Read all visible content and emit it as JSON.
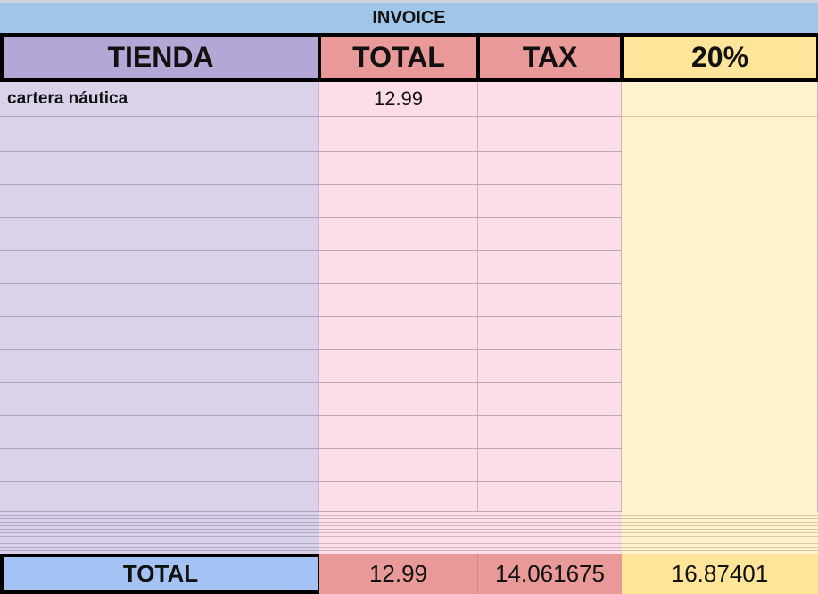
{
  "title": "INVOICE",
  "headers": [
    "TIENDA",
    "TOTAL",
    "TAX",
    "20%"
  ],
  "rows": [
    {
      "tienda": "cartera náutica",
      "total": "12.99",
      "tax": "",
      "pct": ""
    },
    {
      "tienda": "",
      "total": "",
      "tax": "",
      "pct": ""
    },
    {
      "tienda": "",
      "total": "",
      "tax": "",
      "pct": ""
    },
    {
      "tienda": "",
      "total": "",
      "tax": "",
      "pct": ""
    },
    {
      "tienda": "",
      "total": "",
      "tax": "",
      "pct": ""
    },
    {
      "tienda": "",
      "total": "",
      "tax": "",
      "pct": ""
    },
    {
      "tienda": "",
      "total": "",
      "tax": "",
      "pct": ""
    },
    {
      "tienda": "",
      "total": "",
      "tax": "",
      "pct": ""
    },
    {
      "tienda": "",
      "total": "",
      "tax": "",
      "pct": ""
    },
    {
      "tienda": "",
      "total": "",
      "tax": "",
      "pct": ""
    },
    {
      "tienda": "",
      "total": "",
      "tax": "",
      "pct": ""
    },
    {
      "tienda": "",
      "total": "",
      "tax": "",
      "pct": ""
    },
    {
      "tienda": "",
      "total": "",
      "tax": "",
      "pct": ""
    }
  ],
  "totals": {
    "label": "TOTAL",
    "total": "12.99",
    "tax": "14.061675",
    "pct": "16.87401"
  },
  "colors": {
    "title": "#9fc5e8",
    "tienda_header": "#b4a7d6",
    "tienda_cell": "#d9d2e9",
    "red_header": "#ea9999",
    "pink_cell": "#fddde8",
    "yellow_header": "#ffe599",
    "yellow_cell": "#fff2cc",
    "total_label": "#a4c2f4"
  }
}
